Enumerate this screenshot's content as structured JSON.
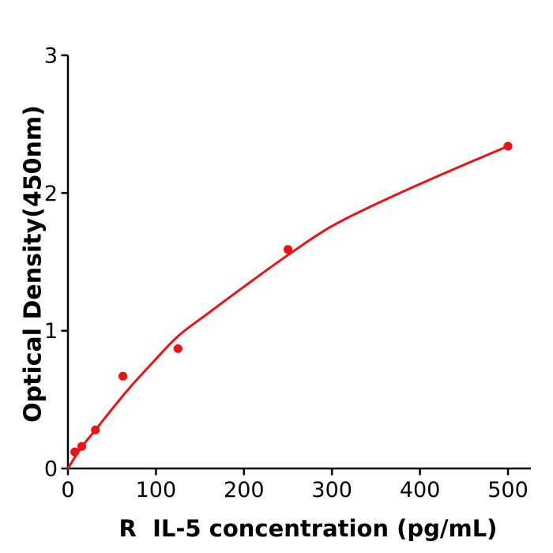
{
  "chart_data": {
    "type": "scatter",
    "title": "",
    "xlabel": "R  IL-5 concentration (pg/mL)",
    "ylabel": "Optical Density(450nm)",
    "x_ticks": [
      0,
      100,
      200,
      300,
      400,
      500
    ],
    "y_ticks": [
      0,
      1,
      2,
      3
    ],
    "xlim": [
      0,
      527
    ],
    "ylim": [
      0,
      3
    ],
    "grid": false,
    "legend": null,
    "series": [
      {
        "name": "standard-points",
        "type": "scatter",
        "x": [
          7.8,
          15.6,
          31.25,
          62.5,
          125,
          250,
          500
        ],
        "y": [
          0.12,
          0.16,
          0.28,
          0.67,
          0.87,
          1.59,
          2.34
        ]
      },
      {
        "name": "fit-curve",
        "type": "line",
        "points": [
          [
            0,
            0
          ],
          [
            15,
            0.15
          ],
          [
            30,
            0.27
          ],
          [
            50,
            0.43
          ],
          [
            70,
            0.585
          ],
          [
            95,
            0.76
          ],
          [
            125,
            0.96
          ],
          [
            160,
            1.13
          ],
          [
            200,
            1.32
          ],
          [
            250,
            1.55
          ],
          [
            300,
            1.76
          ],
          [
            360,
            1.95
          ],
          [
            430,
            2.15
          ],
          [
            500,
            2.34
          ]
        ]
      }
    ],
    "colors": {
      "marker": "#ee1111",
      "curve": "#ee1111",
      "axis": "#000000",
      "background": "#ffffff"
    }
  }
}
